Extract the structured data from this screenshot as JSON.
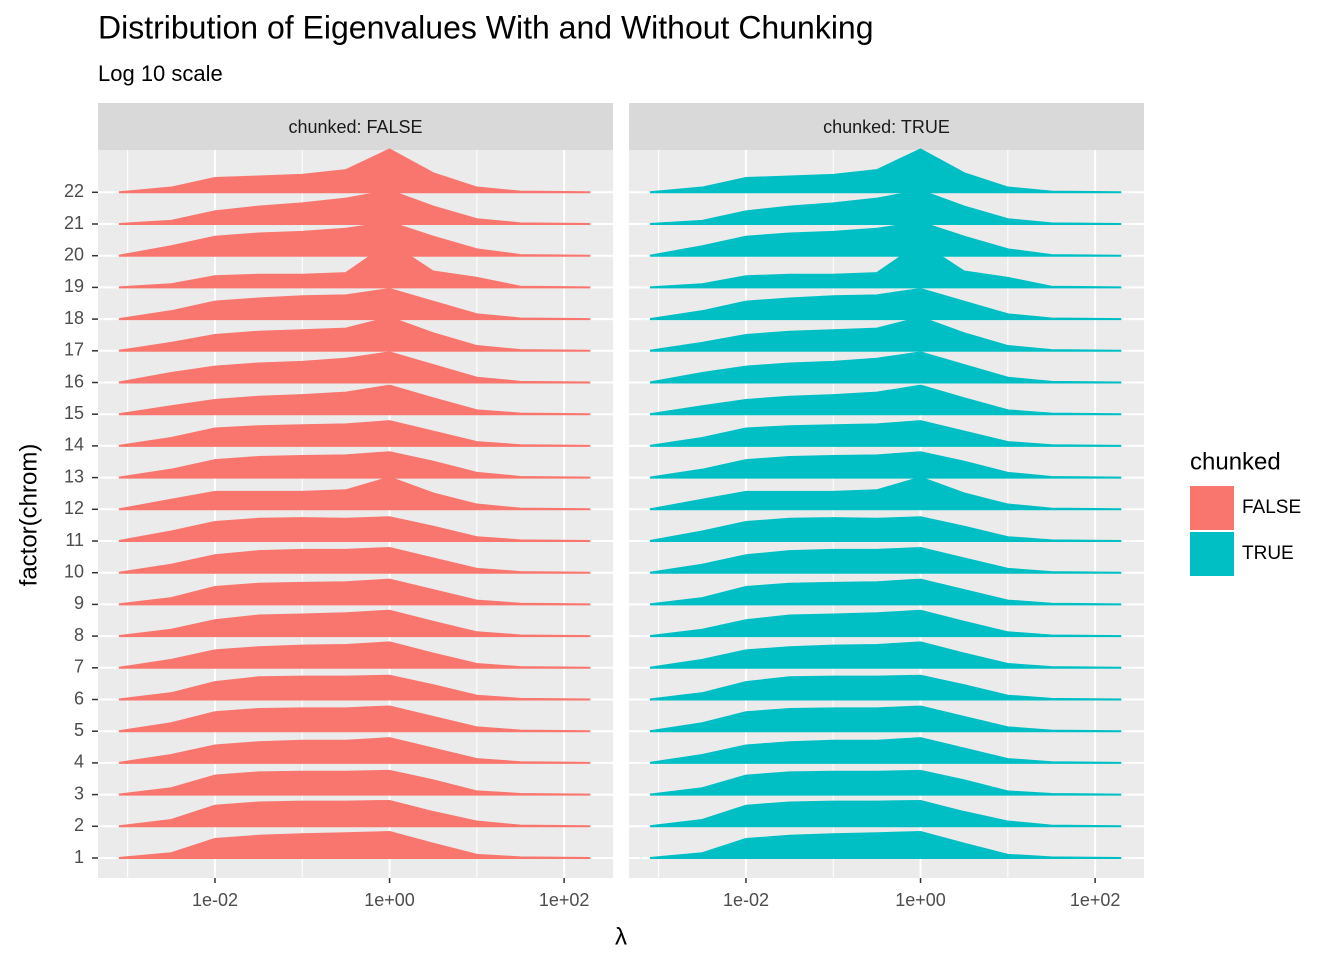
{
  "chart_data": {
    "type": "ridgeline",
    "title": "Distribution of Eigenvalues With and Without Chunking",
    "subtitle": "Log 10 scale",
    "x_label": "λ",
    "y_label": "factor(chrom)",
    "legend_title": "chunked",
    "categories": [
      1,
      2,
      3,
      4,
      5,
      6,
      7,
      8,
      9,
      10,
      11,
      12,
      13,
      14,
      15,
      16,
      17,
      18,
      19,
      20,
      21,
      22
    ],
    "x": [
      -3.1,
      -2.5,
      -2,
      -1.5,
      -1,
      -0.5,
      0,
      0.5,
      1,
      1.5,
      2.3
    ],
    "xlim": [
      -3.34,
      2.56
    ],
    "xticks": [
      {
        "value": -2,
        "label": "1e-02"
      },
      {
        "value": 0,
        "label": "1e+00"
      },
      {
        "value": 2,
        "label": "1e+02"
      }
    ],
    "x_minor_ticks": [
      -3,
      -1,
      1
    ],
    "grid": true,
    "series": [
      {
        "name": "FALSE",
        "strip": "chunked: FALSE",
        "color": "#f8766d",
        "values": [
          [
            0,
            0.15,
            0.6,
            0.7,
            0.75,
            0.78,
            0.82,
            0.45,
            0.1,
            0.02,
            0
          ],
          [
            0,
            0.2,
            0.65,
            0.75,
            0.78,
            0.78,
            0.8,
            0.45,
            0.15,
            0.02,
            0
          ],
          [
            0,
            0.2,
            0.6,
            0.7,
            0.72,
            0.72,
            0.75,
            0.45,
            0.1,
            0.02,
            0
          ],
          [
            0,
            0.25,
            0.55,
            0.65,
            0.7,
            0.7,
            0.78,
            0.45,
            0.12,
            0.02,
            0
          ],
          [
            0,
            0.25,
            0.6,
            0.7,
            0.72,
            0.72,
            0.78,
            0.45,
            0.12,
            0.02,
            0
          ],
          [
            0,
            0.2,
            0.55,
            0.7,
            0.72,
            0.72,
            0.75,
            0.45,
            0.12,
            0.02,
            0
          ],
          [
            0,
            0.25,
            0.55,
            0.65,
            0.7,
            0.72,
            0.8,
            0.45,
            0.12,
            0.02,
            0
          ],
          [
            0,
            0.2,
            0.5,
            0.65,
            0.68,
            0.72,
            0.8,
            0.45,
            0.12,
            0.02,
            0
          ],
          [
            0,
            0.2,
            0.55,
            0.65,
            0.68,
            0.7,
            0.78,
            0.45,
            0.12,
            0.02,
            0
          ],
          [
            0,
            0.25,
            0.55,
            0.68,
            0.72,
            0.72,
            0.78,
            0.45,
            0.12,
            0.02,
            0
          ],
          [
            0,
            0.3,
            0.6,
            0.7,
            0.72,
            0.7,
            0.75,
            0.45,
            0.12,
            0.02,
            0
          ],
          [
            0,
            0.3,
            0.55,
            0.55,
            0.55,
            0.6,
            1.0,
            0.5,
            0.15,
            0.02,
            0
          ],
          [
            0,
            0.25,
            0.55,
            0.65,
            0.68,
            0.7,
            0.8,
            0.5,
            0.15,
            0.02,
            0
          ],
          [
            0,
            0.25,
            0.55,
            0.62,
            0.65,
            0.68,
            0.78,
            0.45,
            0.12,
            0.02,
            0
          ],
          [
            0,
            0.25,
            0.45,
            0.55,
            0.6,
            0.68,
            0.9,
            0.5,
            0.12,
            0.02,
            0
          ],
          [
            0,
            0.3,
            0.5,
            0.6,
            0.65,
            0.75,
            0.95,
            0.55,
            0.15,
            0.02,
            0
          ],
          [
            0,
            0.25,
            0.5,
            0.6,
            0.65,
            0.7,
            1.05,
            0.55,
            0.15,
            0.02,
            0
          ],
          [
            0,
            0.25,
            0.55,
            0.65,
            0.72,
            0.75,
            0.95,
            0.55,
            0.15,
            0.02,
            0
          ],
          [
            0,
            0.1,
            0.35,
            0.4,
            0.4,
            0.45,
            1.4,
            0.5,
            0.3,
            0.02,
            0
          ],
          [
            0,
            0.3,
            0.6,
            0.7,
            0.75,
            0.85,
            1.05,
            0.6,
            0.2,
            0.02,
            0
          ],
          [
            0,
            0.1,
            0.4,
            0.55,
            0.65,
            0.8,
            1.05,
            0.55,
            0.15,
            0.02,
            0
          ],
          [
            0,
            0.15,
            0.45,
            0.5,
            0.55,
            0.7,
            1.35,
            0.6,
            0.15,
            0.02,
            0
          ]
        ]
      },
      {
        "name": "TRUE",
        "strip": "chunked: TRUE",
        "color": "#00bfc4",
        "values": [
          [
            0,
            0.15,
            0.6,
            0.7,
            0.75,
            0.78,
            0.82,
            0.45,
            0.1,
            0.02,
            0
          ],
          [
            0,
            0.2,
            0.65,
            0.75,
            0.78,
            0.78,
            0.8,
            0.45,
            0.15,
            0.02,
            0
          ],
          [
            0,
            0.2,
            0.6,
            0.7,
            0.72,
            0.72,
            0.75,
            0.45,
            0.1,
            0.02,
            0
          ],
          [
            0,
            0.25,
            0.55,
            0.65,
            0.7,
            0.7,
            0.78,
            0.45,
            0.12,
            0.02,
            0
          ],
          [
            0,
            0.25,
            0.6,
            0.7,
            0.72,
            0.72,
            0.78,
            0.45,
            0.12,
            0.02,
            0
          ],
          [
            0,
            0.2,
            0.55,
            0.7,
            0.72,
            0.72,
            0.75,
            0.45,
            0.12,
            0.02,
            0
          ],
          [
            0,
            0.25,
            0.55,
            0.65,
            0.7,
            0.72,
            0.8,
            0.45,
            0.12,
            0.02,
            0
          ],
          [
            0,
            0.2,
            0.5,
            0.65,
            0.68,
            0.72,
            0.8,
            0.45,
            0.12,
            0.02,
            0
          ],
          [
            0,
            0.2,
            0.55,
            0.65,
            0.68,
            0.7,
            0.78,
            0.45,
            0.12,
            0.02,
            0
          ],
          [
            0,
            0.25,
            0.55,
            0.68,
            0.72,
            0.72,
            0.78,
            0.45,
            0.12,
            0.02,
            0
          ],
          [
            0,
            0.3,
            0.6,
            0.7,
            0.72,
            0.7,
            0.75,
            0.45,
            0.12,
            0.02,
            0
          ],
          [
            0,
            0.3,
            0.55,
            0.55,
            0.55,
            0.6,
            1.0,
            0.5,
            0.15,
            0.02,
            0
          ],
          [
            0,
            0.25,
            0.55,
            0.65,
            0.68,
            0.7,
            0.8,
            0.5,
            0.15,
            0.02,
            0
          ],
          [
            0,
            0.25,
            0.55,
            0.62,
            0.65,
            0.68,
            0.78,
            0.45,
            0.12,
            0.02,
            0
          ],
          [
            0,
            0.25,
            0.45,
            0.55,
            0.6,
            0.68,
            0.9,
            0.5,
            0.12,
            0.02,
            0
          ],
          [
            0,
            0.3,
            0.5,
            0.6,
            0.65,
            0.75,
            0.95,
            0.55,
            0.15,
            0.02,
            0
          ],
          [
            0,
            0.25,
            0.5,
            0.6,
            0.65,
            0.7,
            1.05,
            0.55,
            0.15,
            0.02,
            0
          ],
          [
            0,
            0.25,
            0.55,
            0.65,
            0.72,
            0.75,
            0.95,
            0.55,
            0.15,
            0.02,
            0
          ],
          [
            0,
            0.1,
            0.35,
            0.4,
            0.4,
            0.45,
            1.4,
            0.5,
            0.3,
            0.02,
            0
          ],
          [
            0,
            0.3,
            0.6,
            0.7,
            0.75,
            0.85,
            1.05,
            0.6,
            0.2,
            0.02,
            0
          ],
          [
            0,
            0.1,
            0.4,
            0.55,
            0.65,
            0.8,
            1.05,
            0.55,
            0.15,
            0.02,
            0
          ],
          [
            0,
            0.15,
            0.45,
            0.5,
            0.55,
            0.7,
            1.35,
            0.6,
            0.15,
            0.02,
            0
          ]
        ]
      }
    ]
  }
}
